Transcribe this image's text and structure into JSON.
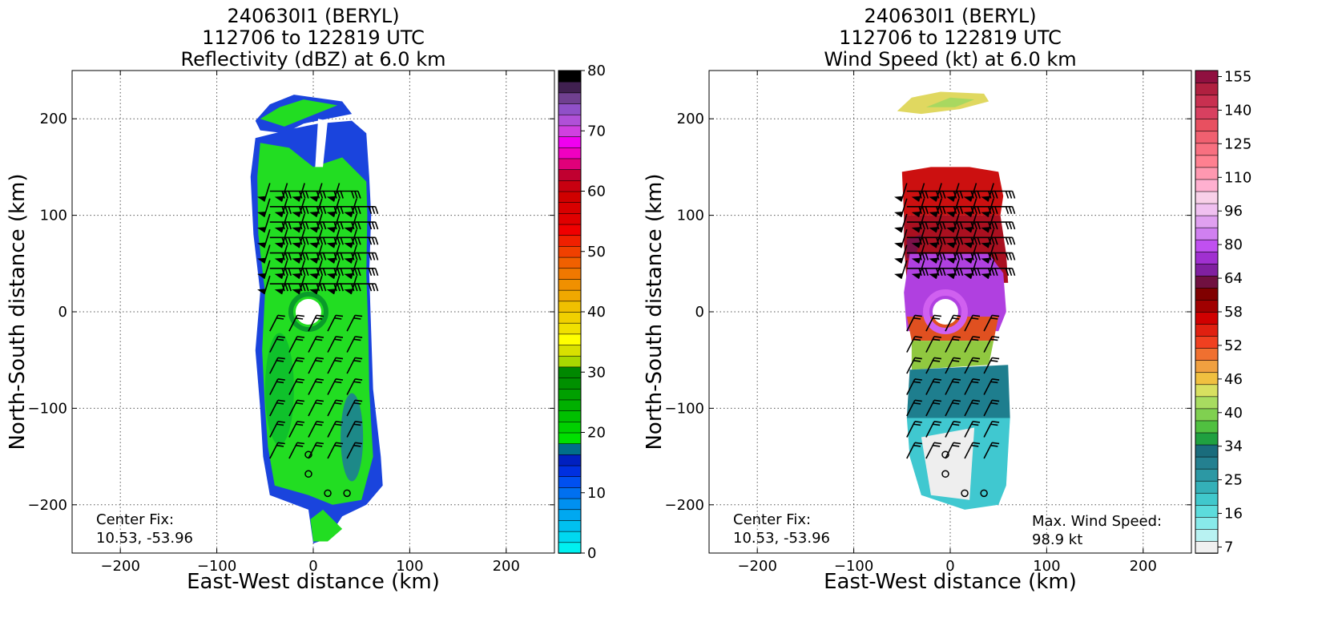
{
  "chart_data": [
    {
      "type": "heatmap",
      "title_lines": [
        "240630I1 (BERYL)",
        "112706 to 122819 UTC",
        "Reflectivity (dBZ) at 6.0 km"
      ],
      "xlabel": "East-West distance (km)",
      "ylabel": "North-South distance (km)",
      "xlim": [
        -250,
        250
      ],
      "ylim": [
        -250,
        250
      ],
      "xticks": [
        -200,
        -100,
        0,
        100,
        200
      ],
      "yticks": [
        -200,
        -100,
        0,
        100,
        200
      ],
      "grid": true,
      "annotations": [
        {
          "id": "center-fix-label",
          "text": "Center Fix:"
        },
        {
          "id": "center-fix-value",
          "text": "10.53, -53.96"
        }
      ],
      "colorbar": {
        "ticks": [
          0,
          10,
          20,
          30,
          40,
          50,
          60,
          70,
          80
        ],
        "range": [
          0,
          80
        ],
        "colors": [
          "#00f0f0",
          "#00d8f0",
          "#00c0f0",
          "#00a8f0",
          "#0090f0",
          "#0070f0",
          "#0050f0",
          "#0030e0",
          "#0020c0",
          "#006e8a",
          "#00e000",
          "#00d000",
          "#00c000",
          "#00b000",
          "#00a000",
          "#009000",
          "#008800",
          "#a8d800",
          "#d8e000",
          "#ffff00",
          "#f0e000",
          "#f0d000",
          "#f0c000",
          "#f0a800",
          "#f09000",
          "#f07800",
          "#f06000",
          "#f04000",
          "#f02000",
          "#f00000",
          "#e00000",
          "#d80000",
          "#d00000",
          "#c80010",
          "#c00030",
          "#e0007a",
          "#f000c0",
          "#f000f0",
          "#d040e0",
          "#b050d8",
          "#9050c8",
          "#704090",
          "#402050",
          "#000000"
        ]
      },
      "echo": {
        "main_color": "#22dd22",
        "edge_color": "#1a44dd",
        "accent_color": "#00aa33"
      }
    },
    {
      "type": "heatmap",
      "title_lines": [
        "240630I1 (BERYL)",
        "112706 to 122819 UTC",
        "Wind Speed (kt) at 6.0 km"
      ],
      "xlabel": "East-West distance (km)",
      "ylabel": "North-South distance (km)",
      "xlim": [
        -250,
        250
      ],
      "ylim": [
        -250,
        250
      ],
      "xticks": [
        -200,
        -100,
        0,
        100,
        200
      ],
      "yticks": [
        -200,
        -100,
        0,
        100,
        200
      ],
      "grid": true,
      "annotations": [
        {
          "id": "center-fix-label",
          "text": "Center Fix:"
        },
        {
          "id": "center-fix-value",
          "text": "10.53, -53.96"
        },
        {
          "id": "max-wind-label",
          "text": "Max. Wind Speed:"
        },
        {
          "id": "max-wind-value",
          "text": "98.9 kt"
        }
      ],
      "max_wind_kt": 98.9,
      "colorbar": {
        "ticks": [
          7,
          16,
          25,
          34,
          40,
          46,
          52,
          58,
          64,
          80,
          96,
          110,
          125,
          140,
          155
        ],
        "colors": [
          "#f0f0f0",
          "#b8f2f2",
          "#88eaea",
          "#5cdcdc",
          "#40c8cc",
          "#34b0b8",
          "#2c98a4",
          "#248090",
          "#1a6c7c",
          "#20a040",
          "#50c040",
          "#80d050",
          "#a8dc60",
          "#d8e060",
          "#f0c040",
          "#f0a040",
          "#f07030",
          "#f04020",
          "#e02010",
          "#d00000",
          "#a00000",
          "#800000",
          "#701040",
          "#8020a0",
          "#a030d0",
          "#c050f0",
          "#d080f0",
          "#e0a0f0",
          "#f0c0f0",
          "#f8d0e8",
          "#ffb0d0",
          "#ff98b0",
          "#ff8090",
          "#f87080",
          "#f06070",
          "#e85060",
          "#d84060",
          "#c83050",
          "#b02040",
          "#901040"
        ]
      },
      "wind_bands": [
        "#cc1010",
        "#aa1020",
        "#7a1048",
        "#b040e0",
        "#e05020",
        "#90c840",
        "#1e7e8e",
        "#40c8d0",
        "#eeeeee"
      ]
    }
  ]
}
